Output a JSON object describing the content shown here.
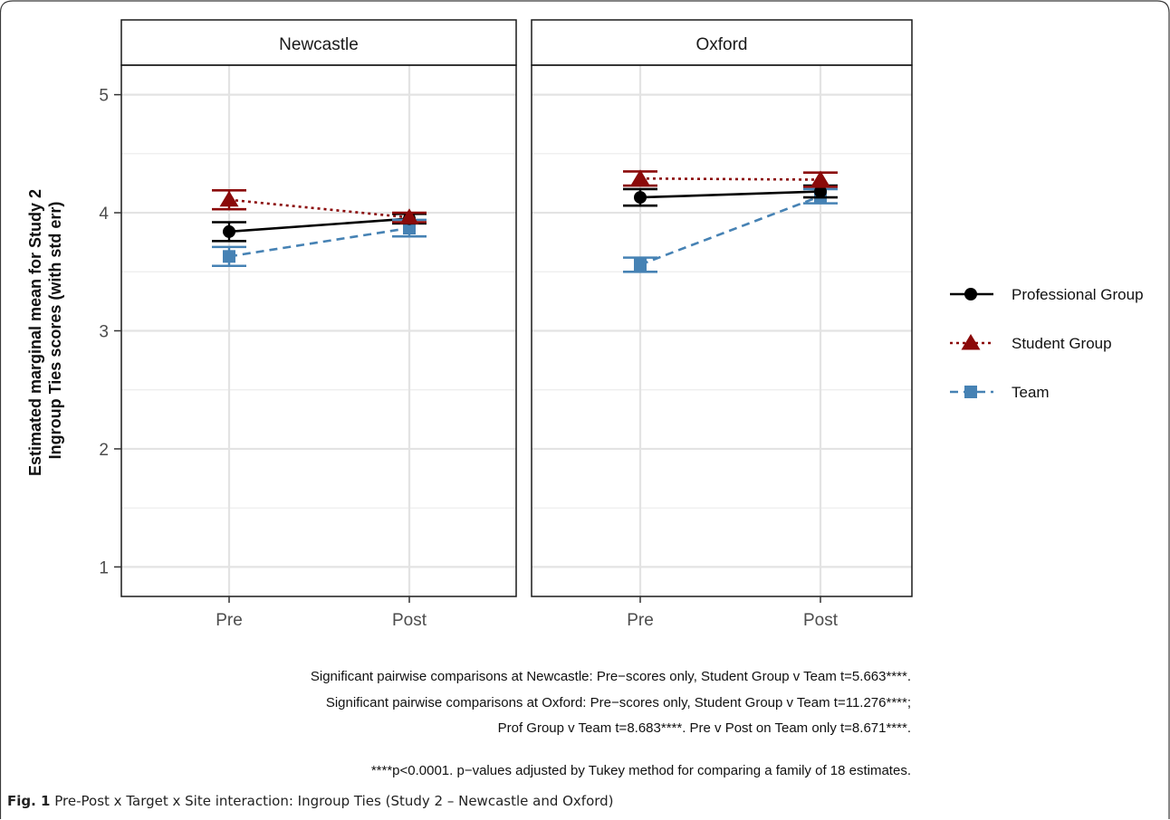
{
  "caption": {
    "label": "Fig. 1",
    "text": "Pre-Post x Target x Site interaction: Ingroup Ties (Study 2 – Newcastle and Oxford)"
  },
  "chart_data": {
    "type": "line",
    "ylabel_line1": "Estimated marginal mean for Study 2",
    "ylabel_line2": "Ingroup Ties scores (with std err)",
    "categories": [
      "Pre",
      "Post"
    ],
    "ylim": [
      0.75,
      5.25
    ],
    "yticks": [
      1,
      2,
      3,
      4,
      5
    ],
    "grid": true,
    "legend_position": "right",
    "panels": [
      {
        "name": "Newcastle",
        "series": [
          {
            "name": "Professional Group",
            "values": [
              3.84,
              3.95
            ],
            "se": [
              0.08,
              0.04
            ]
          },
          {
            "name": "Student Group",
            "values": [
              4.11,
              3.96
            ],
            "se": [
              0.08,
              0.04
            ]
          },
          {
            "name": "Team",
            "values": [
              3.63,
              3.87
            ],
            "se": [
              0.08,
              0.07
            ]
          }
        ]
      },
      {
        "name": "Oxford",
        "series": [
          {
            "name": "Professional Group",
            "values": [
              4.13,
              4.18
            ],
            "se": [
              0.07,
              0.05
            ]
          },
          {
            "name": "Student Group",
            "values": [
              4.29,
              4.28
            ],
            "se": [
              0.06,
              0.06
            ]
          },
          {
            "name": "Team",
            "values": [
              3.56,
              4.14
            ],
            "se": [
              0.06,
              0.06
            ]
          }
        ]
      }
    ],
    "series_styles": [
      {
        "name": "Professional Group",
        "color": "#000000",
        "marker": "circle",
        "dash": "solid"
      },
      {
        "name": "Student Group",
        "color": "#8b0a0a",
        "marker": "triangle",
        "dash": "dotted"
      },
      {
        "name": "Team",
        "color": "#4682b4",
        "marker": "square",
        "dash": "dashed"
      }
    ],
    "notes": [
      "Significant pairwise comparisons at Newcastle: Pre−scores only, Student Group v Team t=5.663****.",
      "Significant pairwise comparisons at Oxford: Pre−scores only, Student Group v Team t=11.276****;",
      "Prof Group v Team t=8.683****. Pre v Post on Team only t=8.671****.",
      "****p<0.0001. p−values adjusted by Tukey method for comparing a family of 18 estimates."
    ]
  }
}
